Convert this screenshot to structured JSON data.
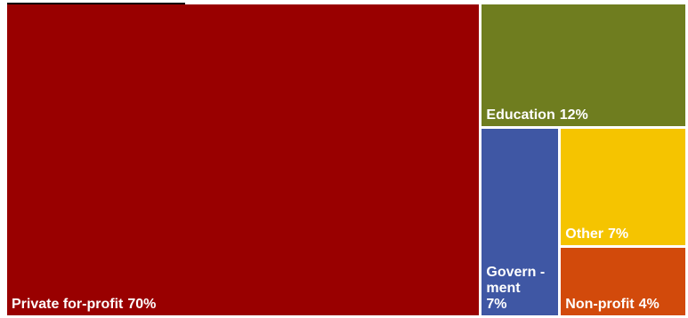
{
  "chart_data": {
    "type": "treemap",
    "categories": [
      "Private for-profit",
      "Education",
      "Govern -ment",
      "Other",
      "Non-profit"
    ],
    "values": [
      70,
      12,
      7,
      7,
      4
    ],
    "value_labels": [
      "70%",
      "12%",
      "7%",
      "7%",
      "4%"
    ],
    "colors": [
      "#990000",
      "#6f7d1f",
      "#3f57a4",
      "#f5c400",
      "#d24a0b"
    ]
  }
}
